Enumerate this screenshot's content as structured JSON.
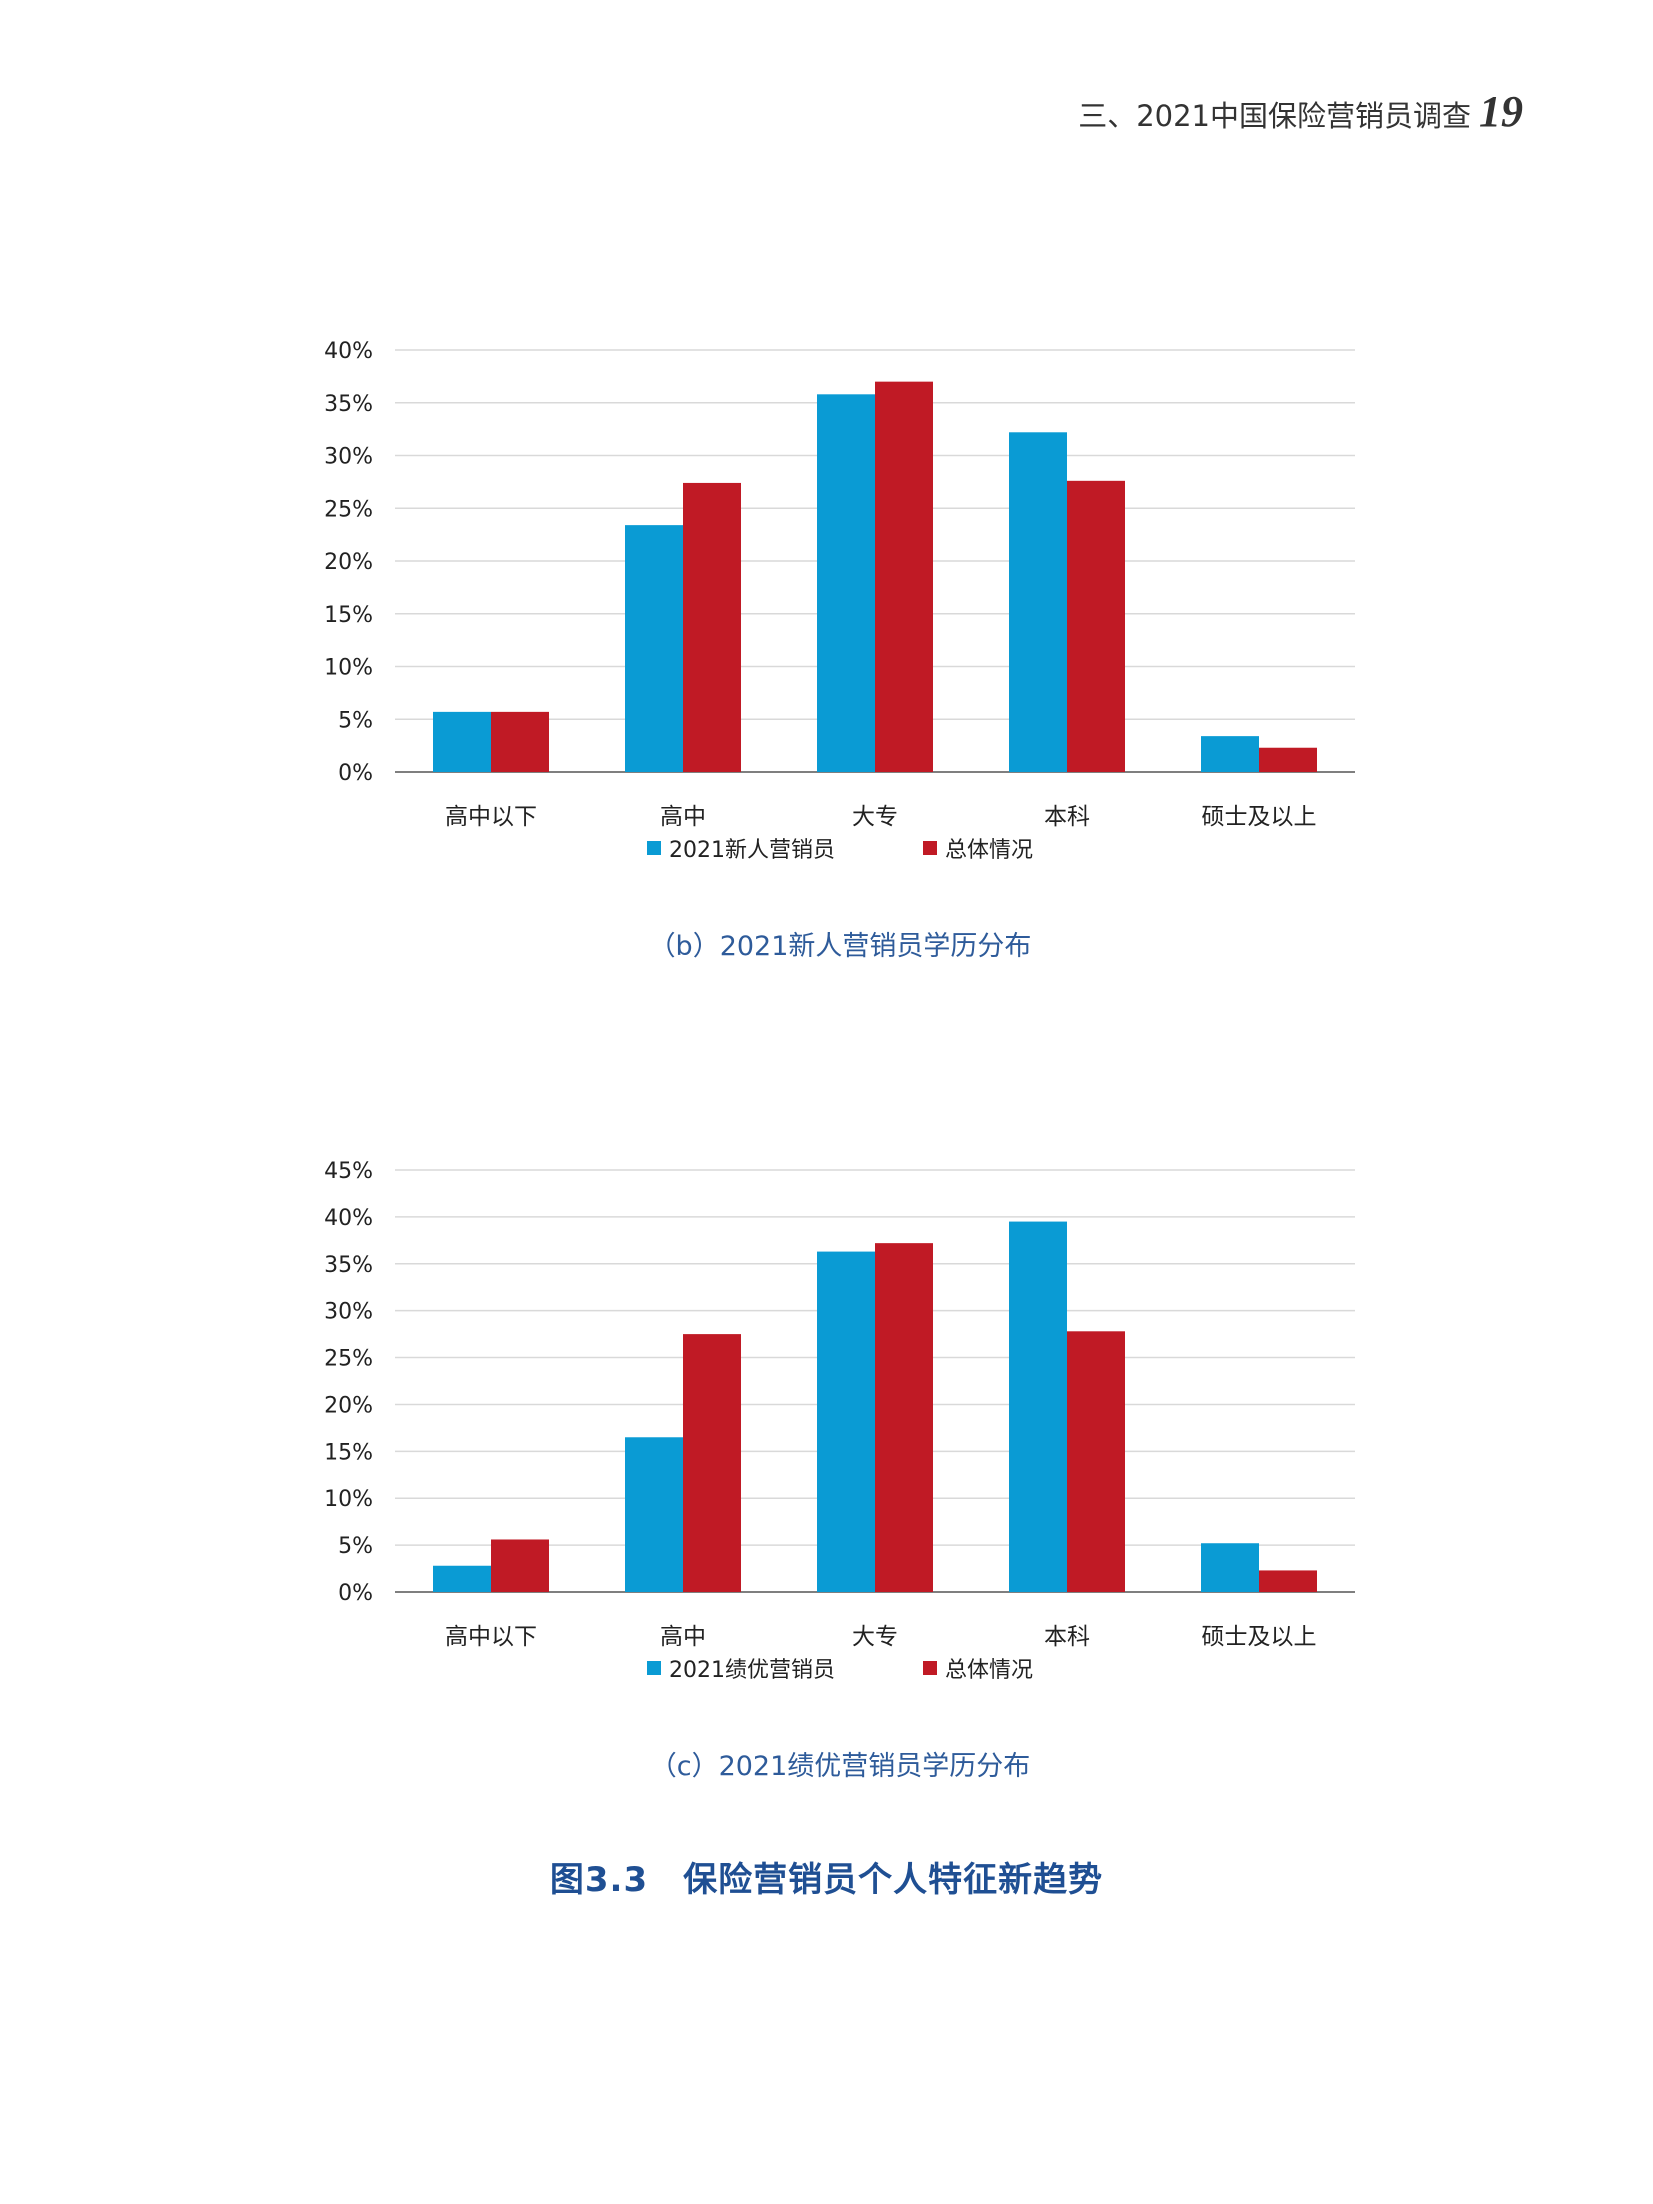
{
  "header": {
    "title": "三、2021中国保险营销员调查",
    "page_number": "19"
  },
  "colors": {
    "series_1": "#0a9bd4",
    "series_2": "#c01a25",
    "gridline": "#d9d9d9",
    "axis": "#7f7f7f"
  },
  "chart_data": [
    {
      "type": "bar",
      "categories": [
        "高中以下",
        "高中",
        "大专",
        "本科",
        "硕士及以上"
      ],
      "series": [
        {
          "name": "2021新人营销员",
          "values": [
            5.7,
            23.4,
            35.8,
            32.2,
            3.4
          ]
        },
        {
          "name": "总体情况",
          "values": [
            5.7,
            27.4,
            37.0,
            27.6,
            2.3
          ]
        }
      ],
      "yticks": [
        "0%",
        "5%",
        "10%",
        "15%",
        "20%",
        "25%",
        "30%",
        "35%",
        "40%"
      ],
      "ylim": [
        0,
        40
      ],
      "grid": true,
      "legend_position": "bottom",
      "caption": "（b）2021新人营销员学历分布"
    },
    {
      "type": "bar",
      "categories": [
        "高中以下",
        "高中",
        "大专",
        "本科",
        "硕士及以上"
      ],
      "series": [
        {
          "name": "2021绩优营销员",
          "values": [
            2.8,
            16.5,
            36.3,
            39.5,
            5.2
          ]
        },
        {
          "name": "总体情况",
          "values": [
            5.6,
            27.5,
            37.2,
            27.8,
            2.3
          ]
        }
      ],
      "yticks": [
        "0%",
        "5%",
        "10%",
        "15%",
        "20%",
        "25%",
        "30%",
        "35%",
        "40%",
        "45%"
      ],
      "ylim": [
        0,
        45
      ],
      "grid": true,
      "legend_position": "bottom",
      "caption": "（c）2021绩优营销员学历分布"
    }
  ],
  "figure_title": "图3.3　保险营销员个人特征新趋势"
}
